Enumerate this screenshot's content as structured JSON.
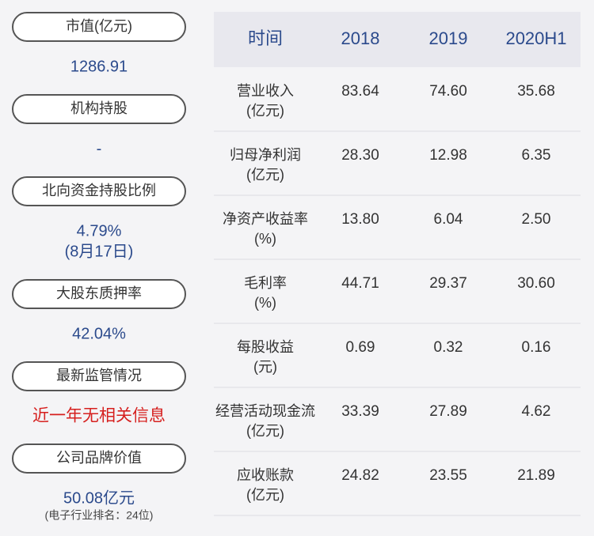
{
  "left": {
    "items": [
      {
        "label": "市值(亿元)",
        "value": "1286.91"
      },
      {
        "label": "机构持股",
        "value": "-"
      },
      {
        "label": "北向资金持股比例",
        "value": "4.79%",
        "note": "(8月17日)"
      },
      {
        "label": "大股东质押率",
        "value": "42.04%"
      },
      {
        "label": "最新监管情况",
        "value": "近一年无相关信息"
      },
      {
        "label": "公司品牌价值",
        "value": "50.08亿元",
        "sub": "(电子行业排名：24位)"
      }
    ]
  },
  "table": {
    "header": [
      "时间",
      "2018",
      "2019",
      "2020H1"
    ],
    "rows": [
      {
        "label": [
          "营业收入",
          "(亿元)"
        ],
        "values": [
          "83.64",
          "74.60",
          "35.68"
        ]
      },
      {
        "label": [
          "归母净利润",
          "(亿元)"
        ],
        "values": [
          "28.30",
          "12.98",
          "6.35"
        ]
      },
      {
        "label": [
          "净资产收益率",
          "(%)"
        ],
        "values": [
          "13.80",
          "6.04",
          "2.50"
        ]
      },
      {
        "label": [
          "毛利率",
          "(%)"
        ],
        "values": [
          "44.71",
          "29.37",
          "30.60"
        ]
      },
      {
        "label": [
          "每股收益",
          "(元)"
        ],
        "values": [
          "0.69",
          "0.32",
          "0.16"
        ]
      },
      {
        "label": [
          "经营活动现金流",
          "(亿元)"
        ],
        "values": [
          "33.39",
          "27.89",
          "4.62"
        ]
      },
      {
        "label": [
          "应收账款",
          "(亿元)"
        ],
        "values": [
          "24.82",
          "23.55",
          "21.89"
        ]
      }
    ]
  }
}
